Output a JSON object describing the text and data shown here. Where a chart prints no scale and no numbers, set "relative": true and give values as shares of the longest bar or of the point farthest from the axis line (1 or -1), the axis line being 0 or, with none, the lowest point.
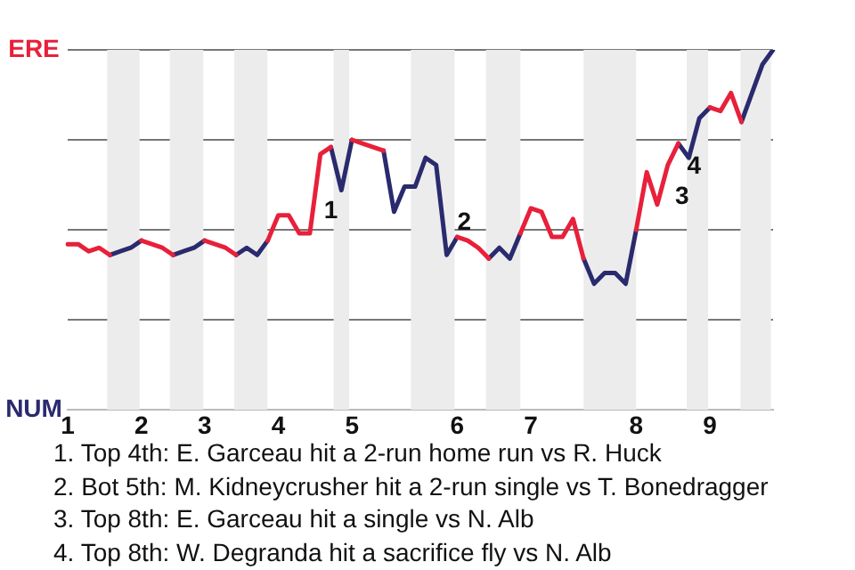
{
  "chart_data": {
    "type": "line",
    "relative": true,
    "categories": [
      "1",
      null,
      null,
      null,
      null,
      null,
      null,
      "2",
      null,
      null,
      null,
      null,
      null,
      "3",
      null,
      null,
      null,
      null,
      null,
      null,
      "4",
      null,
      null,
      null,
      null,
      null,
      null,
      "5",
      null,
      null,
      null,
      null,
      null,
      null,
      null,
      null,
      null,
      "6",
      null,
      null,
      null,
      null,
      null,
      null,
      "7",
      null,
      null,
      null,
      null,
      null,
      null,
      null,
      null,
      null,
      "8",
      null,
      null,
      null,
      null,
      null,
      null,
      "9",
      null,
      null,
      null,
      null,
      null,
      null
    ],
    "grid": "y",
    "legend": "left",
    "marker": "none",
    "line_style": "solid",
    "series": [
      {
        "name": "ERE",
        "color": "#e8203a",
        "values": [
          0.46,
          0.46,
          0.44,
          0.45,
          0.43,
          null,
          null,
          0.47,
          0.46,
          0.45,
          0.43,
          null,
          null,
          0.47,
          0.46,
          0.45,
          0.43,
          null,
          null,
          0.47,
          0.54,
          0.54,
          0.49,
          0.49,
          0.71,
          0.73,
          null,
          0.75,
          0.74,
          0.73,
          0.72,
          null,
          null,
          null,
          null,
          null,
          null,
          0.48,
          0.47,
          0.45,
          0.42,
          null,
          null,
          0.49,
          0.56,
          0.55,
          0.48,
          0.48,
          0.53,
          0.42,
          null,
          null,
          null,
          null,
          0.5,
          0.66,
          0.57,
          0.68,
          0.74,
          null,
          null,
          0.84,
          0.83,
          0.88,
          0.8,
          null,
          null,
          null
        ]
      },
      {
        "name": "NUM",
        "color": "#2a2a6e",
        "values": [
          null,
          null,
          null,
          null,
          0.43,
          0.44,
          0.45,
          0.47,
          null,
          null,
          0.43,
          0.44,
          0.45,
          0.47,
          null,
          null,
          0.43,
          0.45,
          0.43,
          0.47,
          null,
          null,
          null,
          null,
          null,
          0.73,
          0.61,
          0.75,
          null,
          null,
          0.72,
          0.55,
          0.62,
          0.62,
          0.7,
          0.68,
          0.43,
          0.48,
          null,
          null,
          0.42,
          0.45,
          0.42,
          0.49,
          null,
          null,
          null,
          null,
          null,
          0.42,
          0.35,
          0.38,
          0.38,
          0.35,
          0.5,
          null,
          null,
          null,
          0.74,
          0.7,
          0.81,
          0.84,
          null,
          null,
          0.8,
          0.88,
          0.96,
          1
        ]
      }
    ],
    "annotations": [
      "1",
      "2",
      "3",
      "4",
      "1. Top 4th: E. Garceau hit a 2-run home run vs R. Huck",
      "2. Bot 5th: M. Kidneycrusher hit a 2-run single vs T. Bonedragger",
      "3. Top 8th: E. Garceau hit a single vs N. Alb",
      "4. Top 8th: W. Degranda hit a sacrifice fly vs N. Alb"
    ]
  }
}
